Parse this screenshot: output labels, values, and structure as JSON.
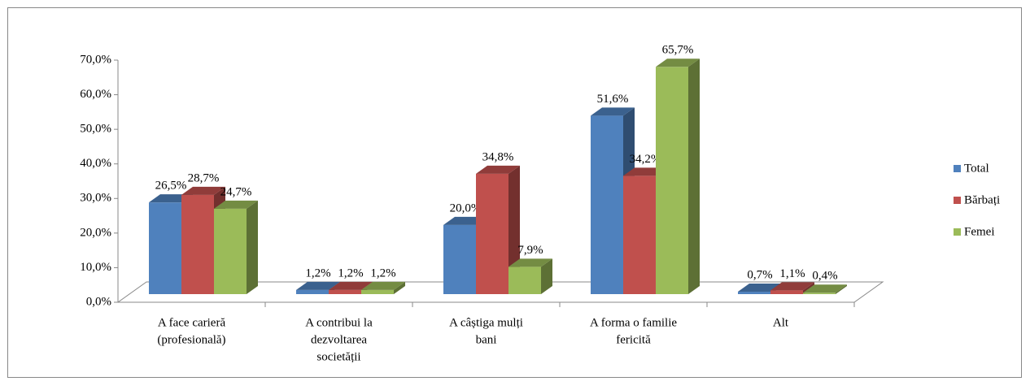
{
  "chart_data": {
    "type": "bar3d",
    "categories": [
      [
        "A face carieră",
        "(profesională)"
      ],
      [
        "A contribui la",
        "dezvoltarea",
        "societății"
      ],
      [
        "A câștiga mulți",
        "bani"
      ],
      [
        "A forma o familie",
        "fericită"
      ],
      [
        "Alt"
      ]
    ],
    "series": [
      {
        "name": "Total",
        "color": "#4f81bd",
        "values": [
          26.5,
          1.2,
          20.0,
          51.6,
          0.7
        ],
        "value_labels": [
          "26,5%",
          "1,2%",
          "20,0%",
          "51,6%",
          "0,7%"
        ]
      },
      {
        "name": "Bărbați",
        "color": "#c0504d",
        "values": [
          28.7,
          1.2,
          34.8,
          34.2,
          1.1
        ],
        "value_labels": [
          "28,7%",
          "1,2%",
          "34,8%",
          "34,2%",
          "1,1%"
        ]
      },
      {
        "name": "Femei",
        "color": "#9bbb59",
        "values": [
          24.7,
          1.2,
          7.9,
          65.7,
          0.4
        ],
        "value_labels": [
          "24,7%",
          "1,2%",
          "7,9%",
          "65,7%",
          "0,4%"
        ]
      }
    ],
    "ylim": [
      0,
      70
    ],
    "yticks": [
      {
        "value": 0,
        "label": "0,0%"
      },
      {
        "value": 10,
        "label": "10,0%"
      },
      {
        "value": 20,
        "label": "20,0%"
      },
      {
        "value": 30,
        "label": "30,0%"
      },
      {
        "value": 40,
        "label": "40,0%"
      },
      {
        "value": 50,
        "label": "50,0%"
      },
      {
        "value": 60,
        "label": "60,0%"
      },
      {
        "value": 70,
        "label": "70,0%"
      }
    ],
    "legend": "right"
  }
}
